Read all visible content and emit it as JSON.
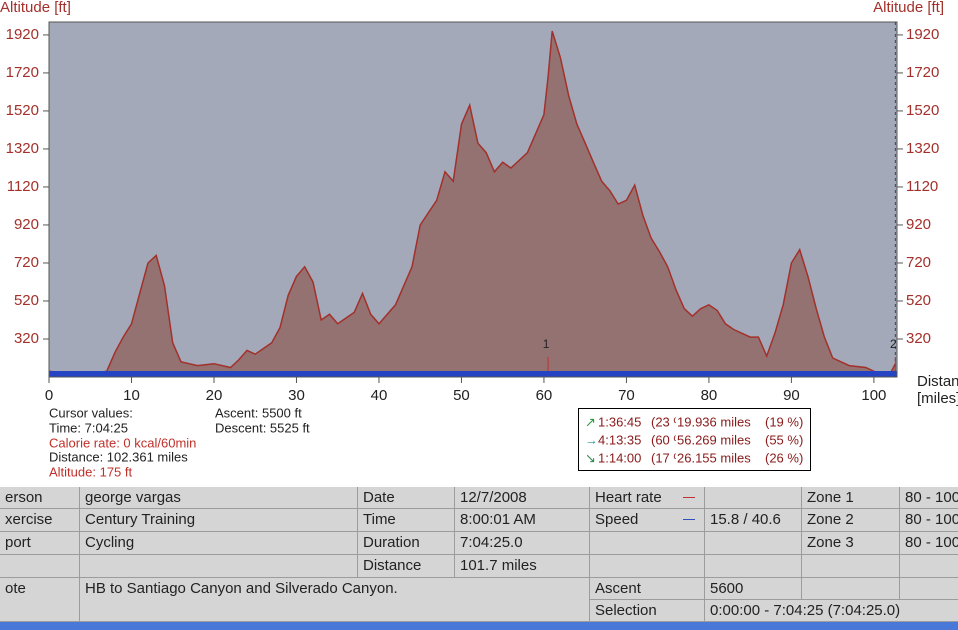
{
  "chart_data": {
    "type": "area",
    "y_label_left": "Altitude [ft]",
    "y_label_right": "Altitude [ft]",
    "x_label": "Distance",
    "x_unit": "[miles]",
    "x": [
      0,
      2,
      5,
      7,
      8,
      9,
      10,
      11,
      12,
      13,
      14,
      15,
      16,
      18,
      20,
      22,
      23,
      24,
      25,
      27,
      28,
      29,
      30,
      31,
      32,
      33,
      34,
      35,
      37,
      38,
      39,
      40,
      42,
      44,
      45,
      47,
      48,
      49,
      50,
      51,
      52,
      53,
      54,
      55,
      56,
      58,
      60,
      60.5,
      61,
      62,
      63,
      64,
      65,
      66,
      67,
      68,
      69,
      70,
      71,
      72,
      73,
      74,
      75,
      76,
      77,
      78,
      79,
      80,
      81,
      82,
      83,
      85,
      86,
      87,
      88,
      89,
      90,
      91,
      92,
      93,
      94,
      95,
      97,
      99,
      100,
      101,
      102,
      102.6
    ],
    "values": [
      150,
      140,
      135,
      150,
      250,
      330,
      400,
      560,
      720,
      760,
      600,
      300,
      200,
      180,
      190,
      170,
      210,
      260,
      240,
      300,
      380,
      550,
      650,
      700,
      620,
      420,
      450,
      400,
      460,
      560,
      450,
      400,
      500,
      700,
      920,
      1050,
      1200,
      1150,
      1450,
      1550,
      1350,
      1300,
      1200,
      1250,
      1220,
      1300,
      1500,
      1700,
      1940,
      1800,
      1600,
      1450,
      1350,
      1250,
      1150,
      1100,
      1030,
      1050,
      1130,
      970,
      850,
      780,
      700,
      580,
      480,
      440,
      480,
      500,
      470,
      400,
      370,
      330,
      330,
      230,
      350,
      500,
      720,
      790,
      650,
      480,
      330,
      220,
      180,
      170,
      150,
      140,
      140,
      190
    ],
    "color": "#957272",
    "line_color": "#a3302a",
    "background": "#a3a9b9",
    "xlim": [
      0,
      102.8
    ],
    "ylim": [
      120,
      1988
    ],
    "xticks": [
      0,
      10,
      20,
      30,
      40,
      50,
      60,
      70,
      80,
      90,
      100
    ],
    "yticks": [
      320,
      520,
      720,
      920,
      1120,
      1320,
      1520,
      1720,
      1920
    ],
    "markers": [
      {
        "label": "1",
        "x": 60.5
      },
      {
        "label": "2",
        "x": 102.6
      }
    ]
  },
  "cursor": {
    "title": "Cursor values:",
    "time": "Time: 7:04:25",
    "calorie": "Calorie rate: 0 kcal/60min",
    "distance": "Distance: 102.361 miles",
    "altitude": "Altitude: 175 ft",
    "ascent": "Ascent: 5500 ft",
    "descent": "Descent: 5525 ft"
  },
  "stats": [
    {
      "time": "1:36:45",
      "time_pct": "(23 %)",
      "distance": "19.936 miles",
      "distance_pct": "(19 %)"
    },
    {
      "time": "4:13:35",
      "time_pct": "(60 %)",
      "distance": "56.269 miles",
      "distance_pct": "(55 %)"
    },
    {
      "time": "1:14:00",
      "time_pct": "(17 %)",
      "distance": "26.155 miles",
      "distance_pct": "(26 %)"
    }
  ],
  "table": {
    "labels": {
      "person": "erson",
      "exercise": "xercise",
      "sport": "port",
      "note": "ote",
      "date": "Date",
      "time": "Time",
      "duration": "Duration",
      "distance": "Distance",
      "heart_rate": "Heart rate",
      "speed": "Speed",
      "ascent": "Ascent",
      "selection": "Selection"
    },
    "values": {
      "person": "george vargas",
      "exercise": "Century Training",
      "sport": "Cycling",
      "note": "HB to Santiago Canyon and Silverado Canyon.",
      "date": "12/7/2008",
      "time": "8:00:01 AM",
      "duration": "7:04:25.0",
      "distance": "101.7 miles",
      "speed": "15.8 / 40.6",
      "ascent": "5600",
      "selection": "0:00:00 - 7:04:25 (7:04:25.0)"
    },
    "zones": [
      {
        "name": "Zone 1",
        "range": "80 - 100"
      },
      {
        "name": "Zone 2",
        "range": "80 - 100"
      },
      {
        "name": "Zone 3",
        "range": "80 - 100"
      }
    ]
  }
}
